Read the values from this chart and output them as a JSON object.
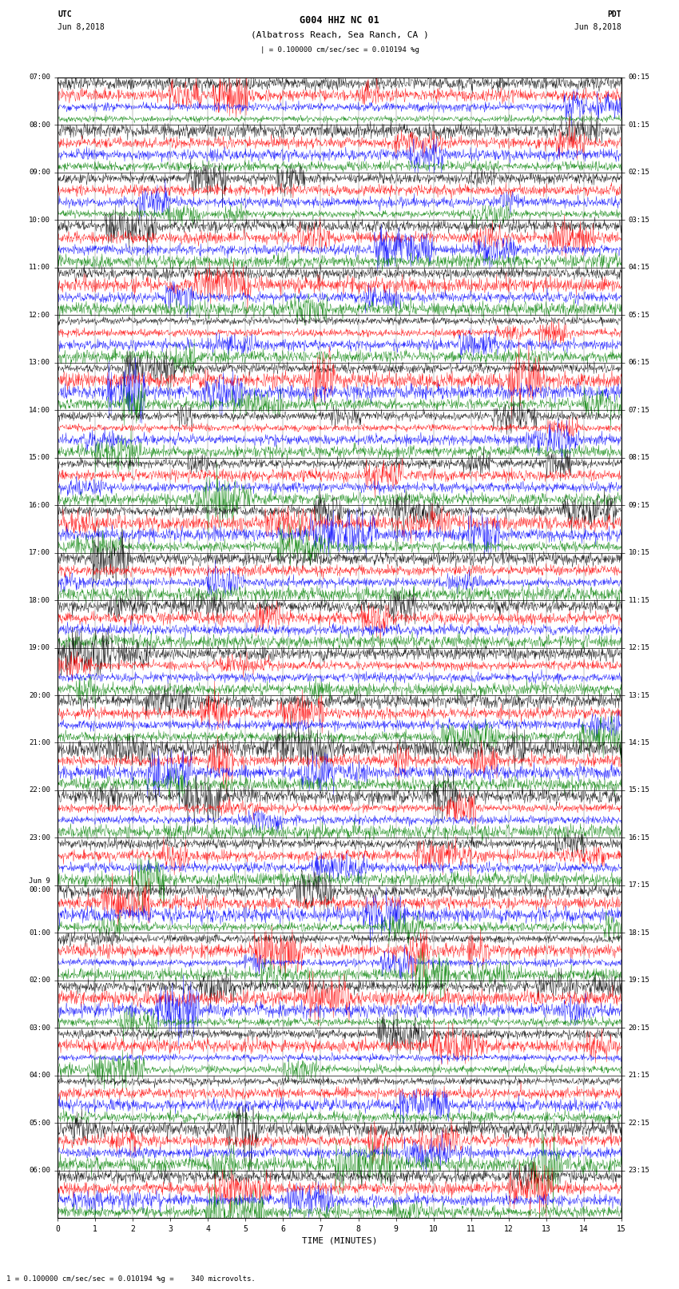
{
  "title_line1": "G004 HHZ NC 01",
  "title_line2": "(Albatross Reach, Sea Ranch, CA )",
  "left_label": "UTC",
  "left_date": "Jun 8,2018",
  "right_label": "PDT",
  "right_date": "Jun 8,2018",
  "scale_text": "| = 0.100000 cm/sec/sec = 0.010194 %g",
  "bottom_label": "TIME (MINUTES)",
  "bottom_scale": "1 = 0.100000 cm/sec/sec = 0.010194 %g =    340 microvolts.",
  "x_ticks": [
    0,
    1,
    2,
    3,
    4,
    5,
    6,
    7,
    8,
    9,
    10,
    11,
    12,
    13,
    14,
    15
  ],
  "left_times": [
    "07:00",
    "08:00",
    "09:00",
    "10:00",
    "11:00",
    "12:00",
    "13:00",
    "14:00",
    "15:00",
    "16:00",
    "17:00",
    "18:00",
    "19:00",
    "20:00",
    "21:00",
    "22:00",
    "23:00",
    "Jun 9\n00:00",
    "01:00",
    "02:00",
    "03:00",
    "04:00",
    "05:00",
    "06:00"
  ],
  "right_times": [
    "00:15",
    "01:15",
    "02:15",
    "03:15",
    "04:15",
    "05:15",
    "06:15",
    "07:15",
    "08:15",
    "09:15",
    "10:15",
    "11:15",
    "12:15",
    "13:15",
    "14:15",
    "15:15",
    "16:15",
    "17:15",
    "18:15",
    "19:15",
    "20:15",
    "21:15",
    "22:15",
    "23:15"
  ],
  "colors": [
    "black",
    "red",
    "blue",
    "green"
  ],
  "num_hour_blocks": 24,
  "traces_per_block": 4,
  "fig_width": 8.5,
  "fig_height": 16.13,
  "bg_color": "white",
  "noise_seed": 42
}
